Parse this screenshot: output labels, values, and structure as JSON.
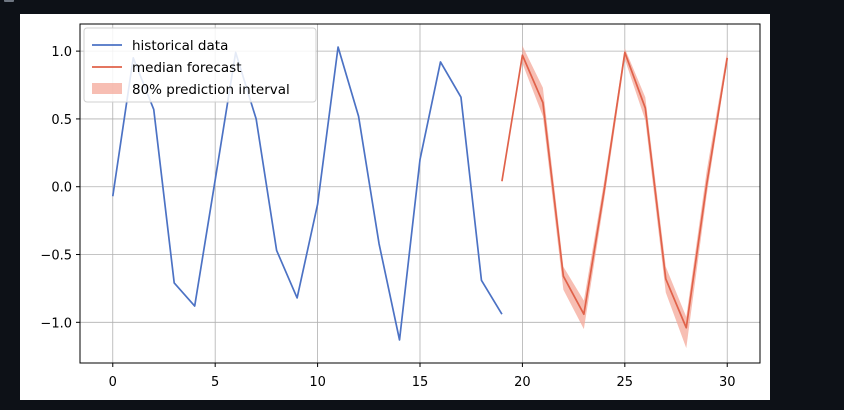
{
  "chart_data": {
    "type": "line",
    "title": "",
    "xlabel": "",
    "ylabel": "",
    "xlim": [
      -1.6,
      31.6
    ],
    "ylim": [
      -1.3,
      1.2
    ],
    "xticks": [
      0,
      5,
      10,
      15,
      20,
      25,
      30
    ],
    "xtick_labels": [
      "0",
      "5",
      "10",
      "15",
      "20",
      "25",
      "30"
    ],
    "yticks": [
      -1.0,
      -0.5,
      0.0,
      0.5,
      1.0
    ],
    "ytick_labels": [
      "−1.0",
      "−0.5",
      "0.0",
      "0.5",
      "1.0"
    ],
    "grid": true,
    "legend_position": "upper-left",
    "series": [
      {
        "name": "historical data",
        "color": "#4c72c4",
        "x": [
          0,
          1,
          2,
          3,
          4,
          5,
          6,
          7,
          8,
          9,
          10,
          11,
          12,
          13,
          14,
          15,
          16,
          17,
          18,
          19
        ],
        "y": [
          -0.07,
          0.95,
          0.57,
          -0.71,
          -0.88,
          0.05,
          0.99,
          0.5,
          -0.47,
          -0.82,
          -0.13,
          1.03,
          0.52,
          -0.42,
          -1.13,
          0.2,
          0.92,
          0.66,
          -0.69,
          -0.94
        ]
      },
      {
        "name": "median forecast",
        "color": "#e0624a",
        "x": [
          19,
          20,
          21,
          22,
          23,
          24,
          25,
          26,
          27,
          28,
          29,
          30
        ],
        "y": [
          0.04,
          0.97,
          0.62,
          -0.66,
          -0.94,
          -0.02,
          0.99,
          0.58,
          -0.68,
          -1.04,
          0.02,
          0.95
        ]
      }
    ],
    "bands": [
      {
        "name": "80% prediction interval",
        "color": "#f4a89a",
        "x": [
          20,
          21,
          22,
          23,
          24,
          25,
          26,
          27,
          28,
          29,
          30
        ],
        "lower": [
          0.91,
          0.52,
          -0.76,
          -1.05,
          -0.09,
          0.94,
          0.49,
          -0.78,
          -1.19,
          -0.06,
          0.92
        ],
        "upper": [
          1.04,
          0.73,
          -0.59,
          -0.84,
          0.05,
          1.02,
          0.66,
          -0.59,
          -0.96,
          0.12,
          1.0
        ]
      }
    ]
  }
}
